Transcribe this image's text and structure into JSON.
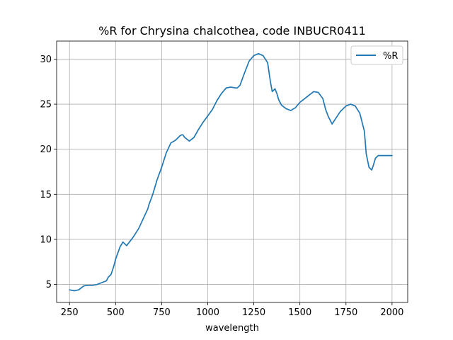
{
  "chart_data": {
    "type": "line",
    "title": "%R for Chrysina chalcothea, code INBUCR0411",
    "xlabel": "wavelength",
    "ylabel": "",
    "xlim": [
      180,
      2085
    ],
    "ylim": [
      3.0,
      32.0
    ],
    "x_ticks": [
      250,
      500,
      750,
      1000,
      1250,
      1500,
      1750,
      2000
    ],
    "x_tick_labels": [
      "250",
      "500",
      "750",
      "1000",
      "1250",
      "1500",
      "1750",
      "2000"
    ],
    "y_ticks": [
      5,
      10,
      15,
      20,
      25,
      30
    ],
    "y_tick_labels": [
      "5",
      "10",
      "15",
      "20",
      "25",
      "30"
    ],
    "grid": true,
    "legend": {
      "position": "top-right",
      "entries": [
        "%R"
      ]
    },
    "series": [
      {
        "name": "%R",
        "color": "#1f77b4",
        "x": [
          250,
          275,
          300,
          325,
          330,
          350,
          375,
          400,
          425,
          450,
          460,
          475,
          490,
          500,
          525,
          540,
          560,
          575,
          590,
          600,
          625,
          650,
          675,
          680,
          700,
          725,
          750,
          775,
          800,
          825,
          850,
          860,
          865,
          875,
          900,
          925,
          950,
          975,
          1000,
          1025,
          1050,
          1075,
          1100,
          1125,
          1150,
          1160,
          1175,
          1200,
          1225,
          1250,
          1275,
          1300,
          1325,
          1340,
          1350,
          1365,
          1375,
          1385,
          1400,
          1425,
          1450,
          1475,
          1500,
          1525,
          1550,
          1575,
          1600,
          1625,
          1640,
          1655,
          1675,
          1700,
          1720,
          1730,
          1750,
          1775,
          1800,
          1825,
          1850,
          1860,
          1875,
          1890,
          1900,
          1910,
          1925,
          1935,
          1950,
          1975,
          2000
        ],
        "values": [
          4.4,
          4.3,
          4.4,
          4.8,
          4.85,
          4.9,
          4.9,
          5.0,
          5.2,
          5.4,
          5.8,
          6.1,
          7.0,
          7.8,
          9.2,
          9.7,
          9.3,
          9.7,
          10.1,
          10.4,
          11.2,
          12.3,
          13.4,
          13.8,
          14.9,
          16.6,
          18.0,
          19.6,
          20.7,
          21.0,
          21.5,
          21.6,
          21.6,
          21.3,
          20.9,
          21.3,
          22.2,
          23.0,
          23.7,
          24.4,
          25.4,
          26.2,
          26.8,
          26.9,
          26.8,
          26.8,
          27.1,
          28.5,
          29.8,
          30.4,
          30.6,
          30.4,
          29.6,
          27.5,
          26.4,
          26.7,
          26.2,
          25.5,
          24.9,
          24.5,
          24.3,
          24.6,
          25.2,
          25.6,
          26.0,
          26.4,
          26.3,
          25.6,
          24.4,
          23.6,
          22.8,
          23.6,
          24.2,
          24.4,
          24.8,
          25.0,
          24.8,
          24.0,
          22.0,
          19.5,
          18.0,
          17.7,
          18.3,
          19.0,
          19.3,
          19.3,
          19.3,
          19.3,
          19.3
        ]
      }
    ]
  }
}
